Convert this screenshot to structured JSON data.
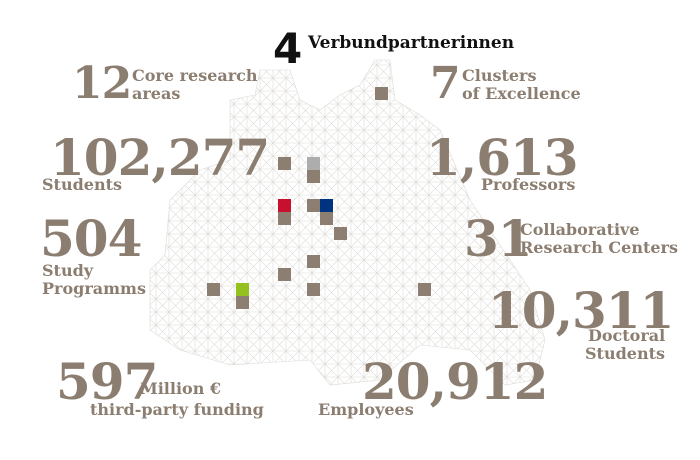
{
  "stats": [
    {
      "number": "4",
      "label": [
        "Verbundpartnerinnen"
      ]
    },
    {
      "number": "12",
      "label": [
        "Core research",
        "areas"
      ]
    },
    {
      "number": "7",
      "label": [
        "Clusters",
        "of Excellence"
      ]
    },
    {
      "number": "102,277",
      "label": [
        "Students"
      ]
    },
    {
      "number": "1,613",
      "label": [
        "Professors"
      ]
    },
    {
      "number": "504",
      "label": [
        "Study",
        "Programms"
      ]
    },
    {
      "number": "31",
      "label": [
        "Collaborative",
        "Research Centers"
      ]
    },
    {
      "number": "10,311",
      "label": [
        "Doctoral",
        "Students"
      ]
    },
    {
      "number": "597",
      "label": [
        "Million €",
        "third-party funding"
      ]
    },
    {
      "number": "20,912",
      "label": [
        "Employees"
      ]
    }
  ]
}
